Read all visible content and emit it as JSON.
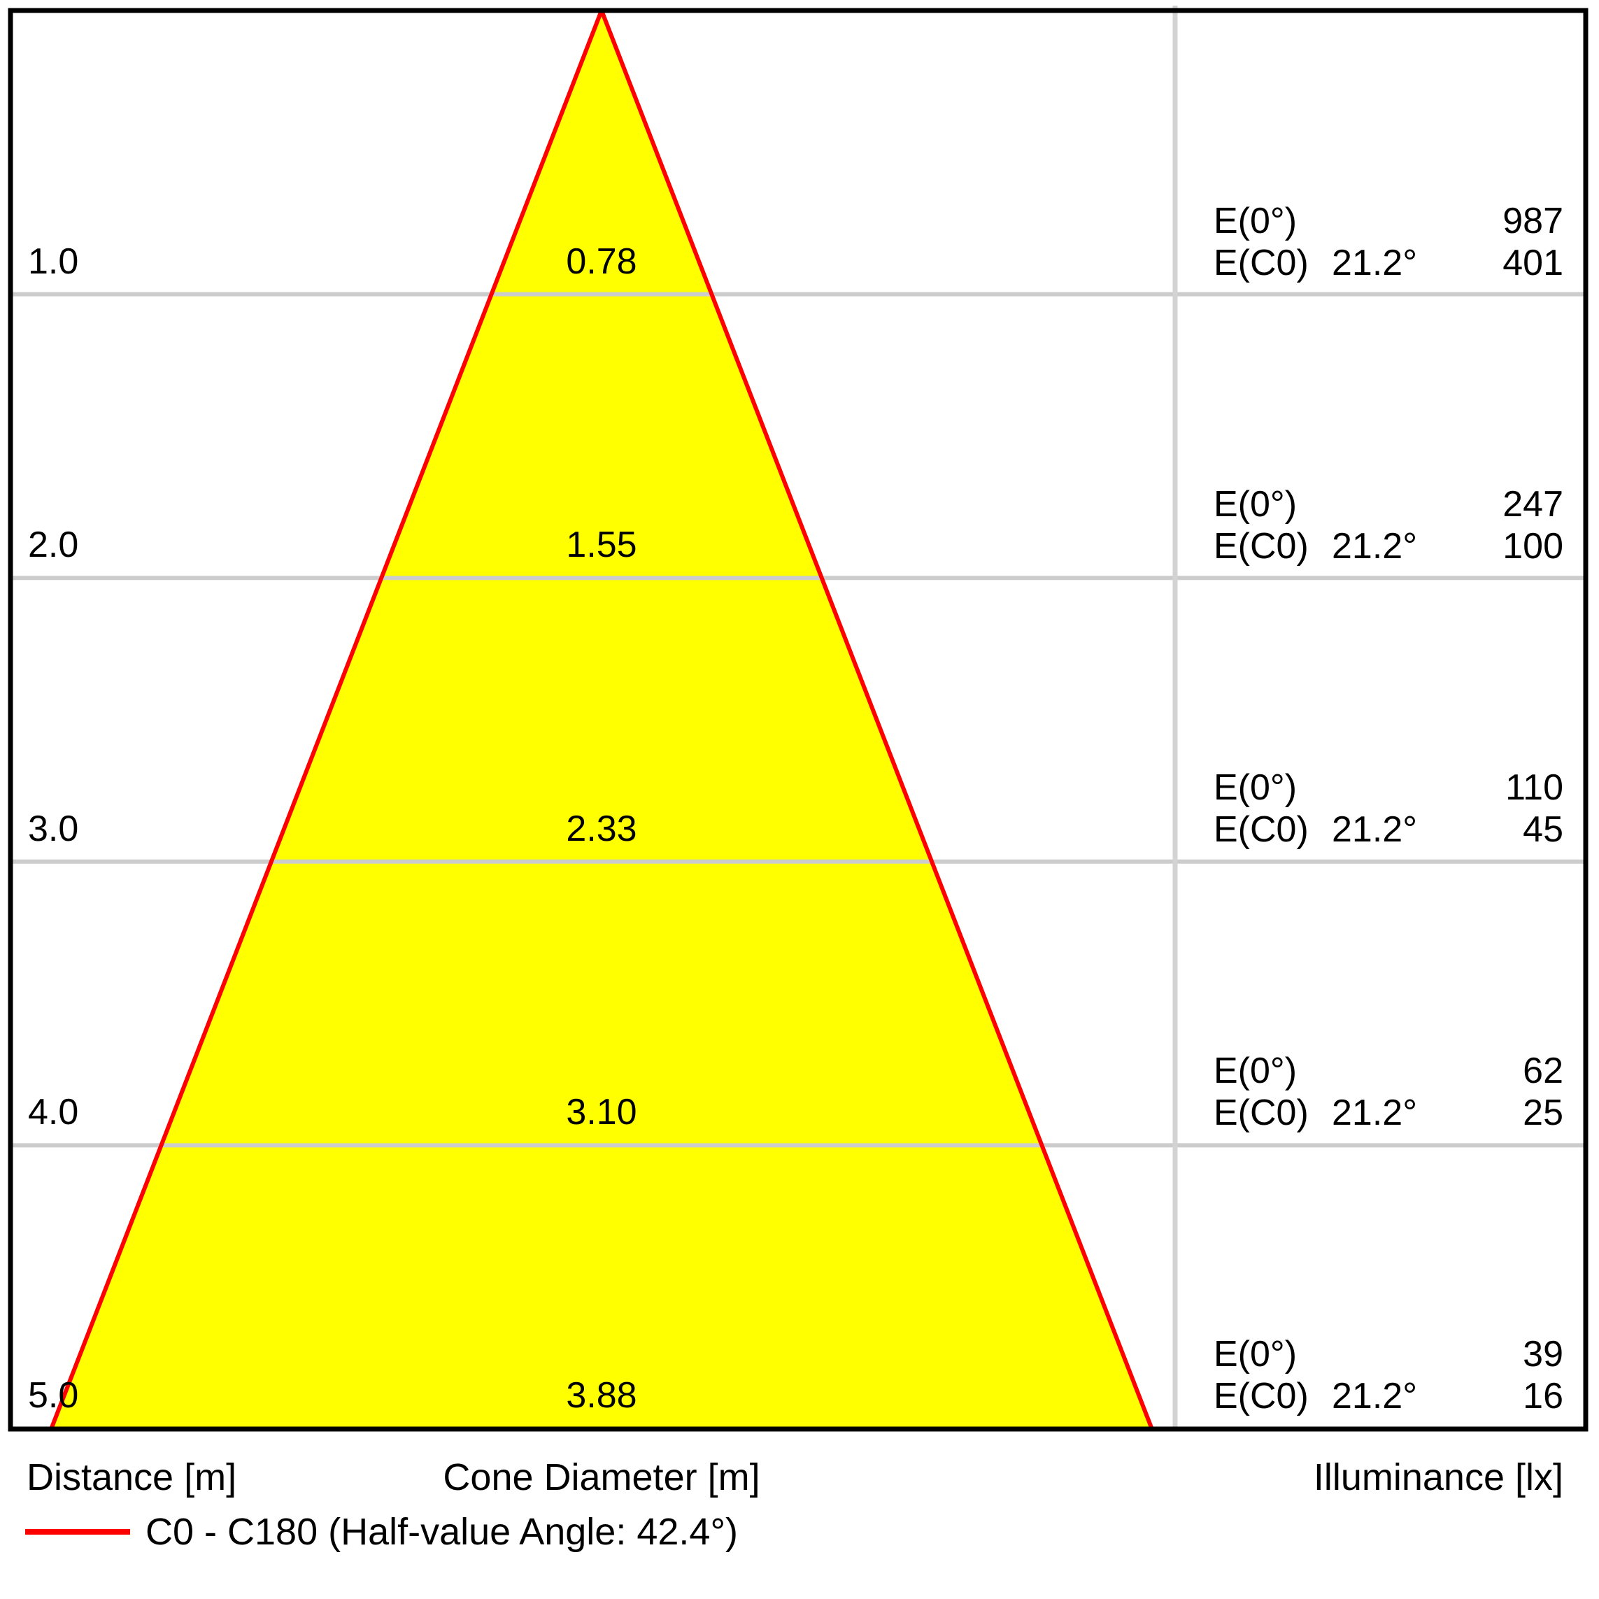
{
  "columns": {
    "distance": "Distance [m]",
    "cone_diameter": "Cone Diameter [m]",
    "illuminance": "Illuminance [lx]"
  },
  "legend": {
    "label": "C0 - C180 (Half-value Angle: 42.4°)",
    "line_color": "#ff0000"
  },
  "rows": [
    {
      "distance": "1.0",
      "diameter": "0.78",
      "e0_label": "E(0°)",
      "e0_value": "987",
      "ec0_label": "E(C0)",
      "angle": "21.2°",
      "ec0_value": "401"
    },
    {
      "distance": "2.0",
      "diameter": "1.55",
      "e0_label": "E(0°)",
      "e0_value": "247",
      "ec0_label": "E(C0)",
      "angle": "21.2°",
      "ec0_value": "100"
    },
    {
      "distance": "3.0",
      "diameter": "2.33",
      "e0_label": "E(0°)",
      "e0_value": "110",
      "ec0_label": "E(C0)",
      "angle": "21.2°",
      "ec0_value": "45"
    },
    {
      "distance": "4.0",
      "diameter": "3.10",
      "e0_label": "E(0°)",
      "e0_value": "62",
      "ec0_label": "E(C0)",
      "angle": "21.2°",
      "ec0_value": "25"
    },
    {
      "distance": "5.0",
      "diameter": "3.88",
      "e0_label": "E(0°)",
      "e0_value": "39",
      "ec0_label": "E(C0)",
      "angle": "21.2°",
      "ec0_value": "16"
    }
  ],
  "chart_data": {
    "type": "area",
    "description": "Photometric light cone diagram: beam cone vs mounting distance with illuminance table",
    "distances_m": [
      1.0,
      2.0,
      3.0,
      4.0,
      5.0
    ],
    "cone_diameters_m": [
      0.78,
      1.55,
      2.33,
      3.1,
      3.88
    ],
    "series": [
      {
        "name": "E(0°) [lx]",
        "values": [
          987,
          247,
          110,
          62,
          39
        ]
      },
      {
        "name": "E(C0) at 21.2° [lx]",
        "values": [
          401,
          100,
          45,
          25,
          16
        ]
      }
    ],
    "beam_half_angle_deg": 21.2,
    "half_value_angle_deg": 42.4,
    "legend": "C0 - C180 (Half-value Angle: 42.4°)",
    "axis": {
      "distance_label": "Distance [m]",
      "diameter_label": "Cone Diameter [m]",
      "illuminance_label": "Illuminance [lx]"
    },
    "layout_hints": {
      "grid": true,
      "legend_position": "bottom-left"
    },
    "colors": {
      "cone_fill": "#ffff00",
      "cone_edge": "#ff0000",
      "grid": "#cccccc",
      "divider": "#d3d3d3",
      "frame": "#000000"
    }
  }
}
